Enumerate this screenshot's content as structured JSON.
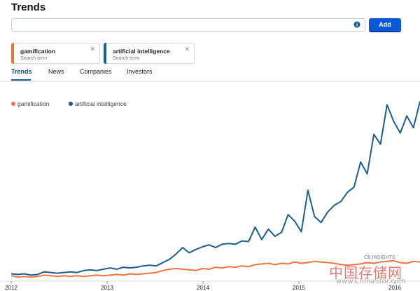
{
  "page": {
    "title": "Trends"
  },
  "search": {
    "value": "",
    "placeholder": "",
    "add_label": "Add"
  },
  "terms": [
    {
      "name": "gamification",
      "subtitle": "Search term",
      "color": "#f4743b"
    },
    {
      "name": "artificial intelligence",
      "subtitle": "Search term",
      "color": "#1b5e90"
    }
  ],
  "tabs": [
    {
      "label": "Trends",
      "active": true
    },
    {
      "label": "News",
      "active": false
    },
    {
      "label": "Companies",
      "active": false
    },
    {
      "label": "Investors",
      "active": false
    }
  ],
  "icons": {
    "info": "info-icon",
    "close": "close-icon"
  },
  "colors": {
    "accent": "#0b58d4"
  },
  "chart_data": {
    "type": "line",
    "x_ticks": [
      "2012",
      "2013",
      "2014",
      "2015",
      "2016"
    ],
    "legend_position": "top-left",
    "grid": false,
    "series": [
      {
        "name": "gamification",
        "color": "#f4743b",
        "values": [
          5,
          3,
          4,
          3,
          4,
          6,
          5,
          4,
          5,
          4,
          5,
          4,
          5,
          6,
          5,
          6,
          7,
          6,
          8,
          7,
          8,
          9,
          10,
          13,
          15,
          16,
          15,
          14,
          13,
          16,
          15,
          18,
          17,
          19,
          18,
          20,
          19,
          22,
          23,
          24,
          22,
          24,
          23,
          26,
          24,
          25,
          27,
          26,
          25,
          24,
          22,
          21,
          22,
          23,
          25,
          24,
          26,
          27,
          28,
          25,
          24,
          27,
          26
        ]
      },
      {
        "name": "artificial intelligence",
        "color": "#1b5e90",
        "values": [
          8,
          7,
          8,
          6,
          7,
          11,
          10,
          9,
          10,
          11,
          10,
          13,
          14,
          13,
          15,
          17,
          15,
          18,
          17,
          18,
          20,
          21,
          20,
          25,
          30,
          38,
          48,
          40,
          45,
          49,
          52,
          48,
          53,
          54,
          53,
          58,
          57,
          79,
          60,
          76,
          65,
          71,
          98,
          88,
          72,
          135,
          95,
          86,
          102,
          112,
          118,
          132,
          140,
          178,
          160,
          220,
          205,
          265,
          240,
          222,
          248,
          230,
          270
        ]
      }
    ]
  },
  "watermark": {
    "logo_text": "CB INSIGHTS",
    "cn_text": "中国存储网",
    "url_text": "www.ChinaStor.com"
  }
}
